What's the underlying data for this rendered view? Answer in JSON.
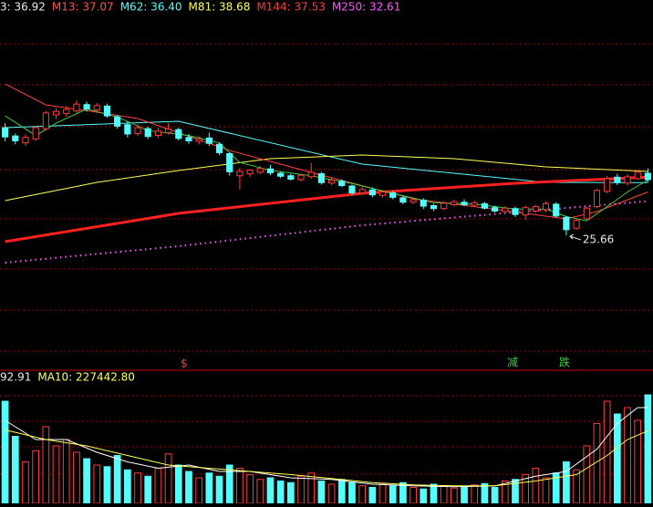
{
  "chart_data": [
    {
      "type": "candlestick",
      "legend": [
        {
          "text": "3: 36.92",
          "color": "#e8e8e8"
        },
        {
          "text": "M13: 37.07",
          "color": "#ff5050"
        },
        {
          "text": "M62: 36.40",
          "color": "#54fcfc"
        },
        {
          "text": "M81: 38.68",
          "color": "#ffff54"
        },
        {
          "text": "M144: 37.53",
          "color": "#ff3c3c"
        },
        {
          "text": "M250: 32.61",
          "color": "#ff54ff"
        }
      ],
      "up_color": "#ff3c3c",
      "down_color": "#54fcfc",
      "xlim": [
        -0.5,
        63.5
      ],
      "ylim": [
        -1.66,
        71.39
      ],
      "ohlc": [
        [
          47.6,
          48.5,
          44.8,
          45.7
        ],
        [
          45.9,
          46.4,
          44.2,
          44.9
        ],
        [
          44.5,
          46.2,
          43.9,
          45.6
        ],
        [
          45.3,
          48.0,
          44.9,
          47.6
        ],
        [
          47.4,
          51.0,
          47.0,
          50.6
        ],
        [
          50.2,
          51.6,
          49.4,
          50.9
        ],
        [
          50.5,
          52.0,
          49.8,
          51.3
        ],
        [
          51.0,
          53.2,
          50.6,
          52.4
        ],
        [
          52.3,
          52.9,
          50.9,
          51.4
        ],
        [
          51.2,
          52.6,
          50.6,
          52.1
        ],
        [
          52.0,
          52.5,
          49.6,
          50.0
        ],
        [
          49.8,
          50.2,
          47.4,
          47.9
        ],
        [
          48.2,
          48.9,
          45.6,
          46.3
        ],
        [
          46.4,
          48.3,
          45.9,
          47.6
        ],
        [
          47.4,
          47.8,
          45.3,
          45.8
        ],
        [
          46.0,
          47.6,
          45.5,
          46.9
        ],
        [
          46.6,
          48.5,
          46.2,
          47.3
        ],
        [
          47.2,
          47.6,
          45.0,
          45.4
        ],
        [
          45.6,
          46.3,
          44.3,
          44.9
        ],
        [
          44.8,
          45.9,
          44.2,
          45.2
        ],
        [
          45.5,
          46.6,
          43.9,
          44.4
        ],
        [
          44.2,
          44.6,
          42.0,
          42.5
        ],
        [
          42.3,
          42.6,
          37.8,
          38.6
        ],
        [
          37.8,
          39.4,
          35.0,
          38.7
        ],
        [
          38.2,
          39.2,
          37.6,
          38.9
        ],
        [
          38.5,
          39.8,
          38.1,
          39.3
        ],
        [
          39.2,
          40.0,
          37.9,
          38.4
        ],
        [
          38.3,
          38.6,
          37.3,
          37.7
        ],
        [
          37.8,
          38.2,
          36.8,
          37.1
        ],
        [
          37.0,
          38.2,
          36.6,
          37.9
        ],
        [
          37.6,
          40.4,
          37.2,
          38.5
        ],
        [
          38.2,
          38.6,
          36.0,
          36.4
        ],
        [
          36.3,
          37.4,
          35.9,
          36.9
        ],
        [
          36.7,
          37.1,
          35.5,
          35.8
        ],
        [
          35.7,
          36.0,
          33.8,
          34.3
        ],
        [
          34.3,
          35.6,
          33.9,
          35.0
        ],
        [
          34.9,
          35.4,
          33.4,
          33.9
        ],
        [
          33.8,
          34.9,
          33.3,
          34.5
        ],
        [
          34.3,
          34.7,
          33.0,
          33.4
        ],
        [
          33.3,
          33.8,
          32.0,
          32.4
        ],
        [
          32.4,
          33.4,
          32.0,
          32.9
        ],
        [
          32.8,
          33.2,
          31.0,
          31.6
        ],
        [
          31.7,
          32.1,
          30.6,
          31.1
        ],
        [
          31.1,
          32.6,
          30.8,
          32.2
        ],
        [
          31.9,
          32.9,
          31.5,
          32.5
        ],
        [
          32.4,
          33.0,
          31.6,
          31.9
        ],
        [
          31.8,
          32.7,
          31.4,
          32.3
        ],
        [
          32.1,
          32.5,
          30.9,
          31.2
        ],
        [
          31.3,
          31.7,
          30.3,
          30.6
        ],
        [
          30.5,
          31.6,
          30.1,
          31.2
        ],
        [
          31.1,
          31.5,
          29.4,
          29.9
        ],
        [
          29.8,
          31.7,
          28.8,
          31.3
        ],
        [
          30.6,
          31.9,
          30.2,
          31.5
        ],
        [
          30.9,
          32.6,
          30.4,
          32.1
        ],
        [
          32.0,
          32.4,
          29.2,
          29.6
        ],
        [
          29.3,
          29.6,
          25.66,
          26.8
        ],
        [
          27.1,
          29.0,
          26.8,
          28.7
        ],
        [
          29.0,
          31.5,
          28.7,
          31.2
        ],
        [
          31.5,
          35.1,
          31.2,
          34.8
        ],
        [
          34.6,
          37.8,
          34.2,
          37.2
        ],
        [
          37.5,
          38.2,
          35.9,
          36.4
        ],
        [
          36.3,
          38.1,
          35.8,
          37.6
        ],
        [
          37.2,
          39.0,
          36.9,
          38.5
        ],
        [
          38.3,
          39.3,
          36.5,
          37.0
        ]
      ],
      "series": [
        {
          "color": "#54fcfc",
          "width": 1,
          "dotted": false,
          "x": [
            0,
            17,
            35,
            53,
            63
          ],
          "values": [
            47.59,
            48.89,
            40.16,
            36.44,
            36.4
          ]
        },
        {
          "color": "#ffff54",
          "width": 1,
          "dotted": false,
          "x": [
            0,
            9,
            17,
            26,
            35,
            44,
            53,
            63
          ],
          "values": [
            32.72,
            36.44,
            38.86,
            41.28,
            42.02,
            41.28,
            39.6,
            38.68
          ]
        },
        {
          "color": "#ff2020",
          "width": 3,
          "dotted": false,
          "x": [
            0,
            17,
            35,
            50,
            63
          ],
          "values": [
            24.36,
            30.12,
            34.21,
            36.25,
            37.53
          ]
        },
        {
          "color": "#ff54ff",
          "width": 2,
          "dotted": true,
          "x": [
            0,
            17,
            35,
            53,
            63
          ],
          "values": [
            20.08,
            23.43,
            27.7,
            30.86,
            32.61
          ]
        },
        {
          "color": "#ff4040",
          "width": 1,
          "dotted": false,
          "x": [
            0,
            4,
            9,
            13,
            22,
            31,
            40,
            49,
            55,
            58,
            63
          ],
          "values": [
            56.51,
            52.24,
            50.75,
            49.45,
            42.95,
            37.93,
            33.1,
            30.68,
            29.01,
            30.5,
            34.5
          ]
        },
        {
          "color": "#3cc83c",
          "width": 1,
          "dotted": false,
          "x": [
            0,
            3,
            5,
            8,
            11,
            14,
            18,
            21,
            23,
            26,
            30,
            34,
            38,
            42,
            46,
            50,
            53,
            55,
            57,
            59,
            61,
            63
          ],
          "values": [
            50.0,
            46.0,
            48.5,
            51.4,
            49.8,
            47.0,
            46.0,
            44.5,
            40.5,
            38.9,
            37.8,
            36.2,
            34.2,
            32.3,
            32.0,
            31.0,
            31.0,
            29.5,
            28.6,
            31.5,
            34.5,
            36.92
          ]
        }
      ],
      "low_label": 25.66,
      "markers": [
        "$",
        "减",
        "跌"
      ]
    },
    {
      "type": "bar",
      "legend": [
        {
          "text": "92.91",
          "color": "#e8e8e8"
        },
        {
          "text": "MA10: 227442.80",
          "color": "#ffff54"
        }
      ],
      "xlim": [
        -0.5,
        63.5
      ],
      "ylim": [
        0,
        400000
      ],
      "values": [
        320000,
        210000,
        130000,
        165000,
        240000,
        180000,
        200000,
        160000,
        140000,
        120000,
        115000,
        150000,
        105000,
        95000,
        85000,
        110000,
        155000,
        120000,
        100000,
        80000,
        95000,
        85000,
        120000,
        110000,
        90000,
        75000,
        80000,
        70000,
        65000,
        85000,
        95000,
        70000,
        60000,
        75000,
        65000,
        55000,
        50000,
        60000,
        55000,
        65000,
        50000,
        45000,
        60000,
        55000,
        48000,
        52000,
        58000,
        62000,
        50000,
        70000,
        75000,
        90000,
        110000,
        80000,
        95000,
        130000,
        105000,
        180000,
        250000,
        320000,
        280000,
        300000,
        260000,
        340000
      ],
      "series": [
        {
          "color": "#ffffff",
          "width": 1,
          "dotted": false,
          "x": [
            0,
            3,
            6,
            9,
            12,
            15,
            18,
            21,
            24,
            28,
            32,
            36,
            40,
            44,
            48,
            52,
            55,
            58,
            60,
            62,
            63
          ],
          "values": [
            260000,
            200000,
            200000,
            160000,
            130000,
            110000,
            120000,
            100000,
            100000,
            80000,
            75000,
            60000,
            55000,
            52000,
            55000,
            85000,
            100000,
            170000,
            250000,
            300000,
            300000
          ]
        },
        {
          "color": "#ffff54",
          "width": 1,
          "dotted": false,
          "x": [
            0,
            4,
            8,
            12,
            16,
            20,
            24,
            28,
            32,
            36,
            40,
            44,
            48,
            52,
            56,
            59,
            61,
            63
          ],
          "values": [
            230000,
            200000,
            180000,
            150000,
            120000,
            110000,
            100000,
            90000,
            78000,
            65000,
            58000,
            55000,
            55000,
            70000,
            90000,
            150000,
            200000,
            227442.8
          ]
        }
      ]
    }
  ]
}
